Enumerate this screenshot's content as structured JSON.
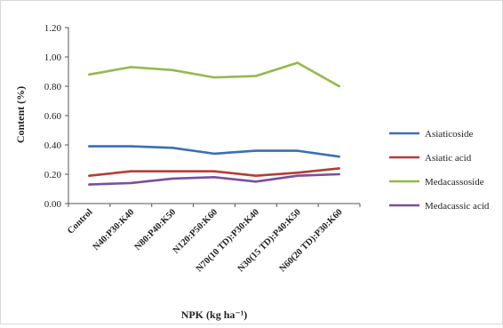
{
  "chart_data": {
    "type": "line",
    "title": "",
    "xlabel": "NPK (kg ha⁻¹)",
    "ylabel": "Content (%)",
    "ylim": [
      0,
      1.2
    ],
    "yticks": [
      "0.00",
      "0.20",
      "0.40",
      "0.60",
      "0.80",
      "1.00",
      "1.20"
    ],
    "grid": false,
    "legend_position": "right",
    "categories": [
      "Control",
      "N40:P30:K40",
      "N80:P40:K50",
      "N120:P50:K60",
      "N70(10 TD):P30:K40",
      "N30(15 TD):P40:K50",
      "N60(20 TD):P30:K60"
    ],
    "series": [
      {
        "name": "Asiaticoside",
        "color": "#3a6fb6",
        "values": [
          0.39,
          0.39,
          0.38,
          0.34,
          0.36,
          0.36,
          0.32
        ]
      },
      {
        "name": "Asiatic acid",
        "color": "#b83b36",
        "values": [
          0.19,
          0.22,
          0.22,
          0.22,
          0.19,
          0.21,
          0.24
        ]
      },
      {
        "name": "Medacassoside",
        "color": "#94b94a",
        "values": [
          0.88,
          0.93,
          0.91,
          0.86,
          0.87,
          0.96,
          0.8
        ]
      },
      {
        "name": "Medacassic acid",
        "color": "#7b4f9d",
        "values": [
          0.13,
          0.14,
          0.17,
          0.18,
          0.15,
          0.19,
          0.2
        ]
      }
    ]
  }
}
